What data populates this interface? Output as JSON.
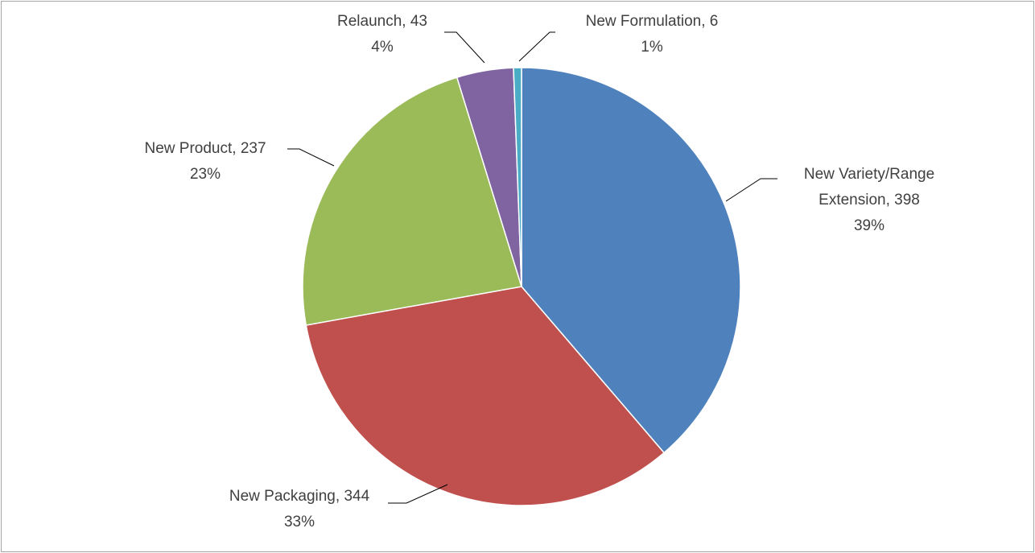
{
  "chart_data": {
    "type": "pie",
    "categories": [
      "New Variety/Range Extension",
      "New Packaging",
      "New Product",
      "Relaunch",
      "New Formulation"
    ],
    "values": [
      398,
      344,
      237,
      43,
      6
    ],
    "percent_labels": [
      "39%",
      "33%",
      "23%",
      "4%",
      "1%"
    ],
    "separator": ", ",
    "colors": [
      "#4f81bd",
      "#c0504d",
      "#9bbb59",
      "#8064a2",
      "#4bacc6"
    ]
  }
}
